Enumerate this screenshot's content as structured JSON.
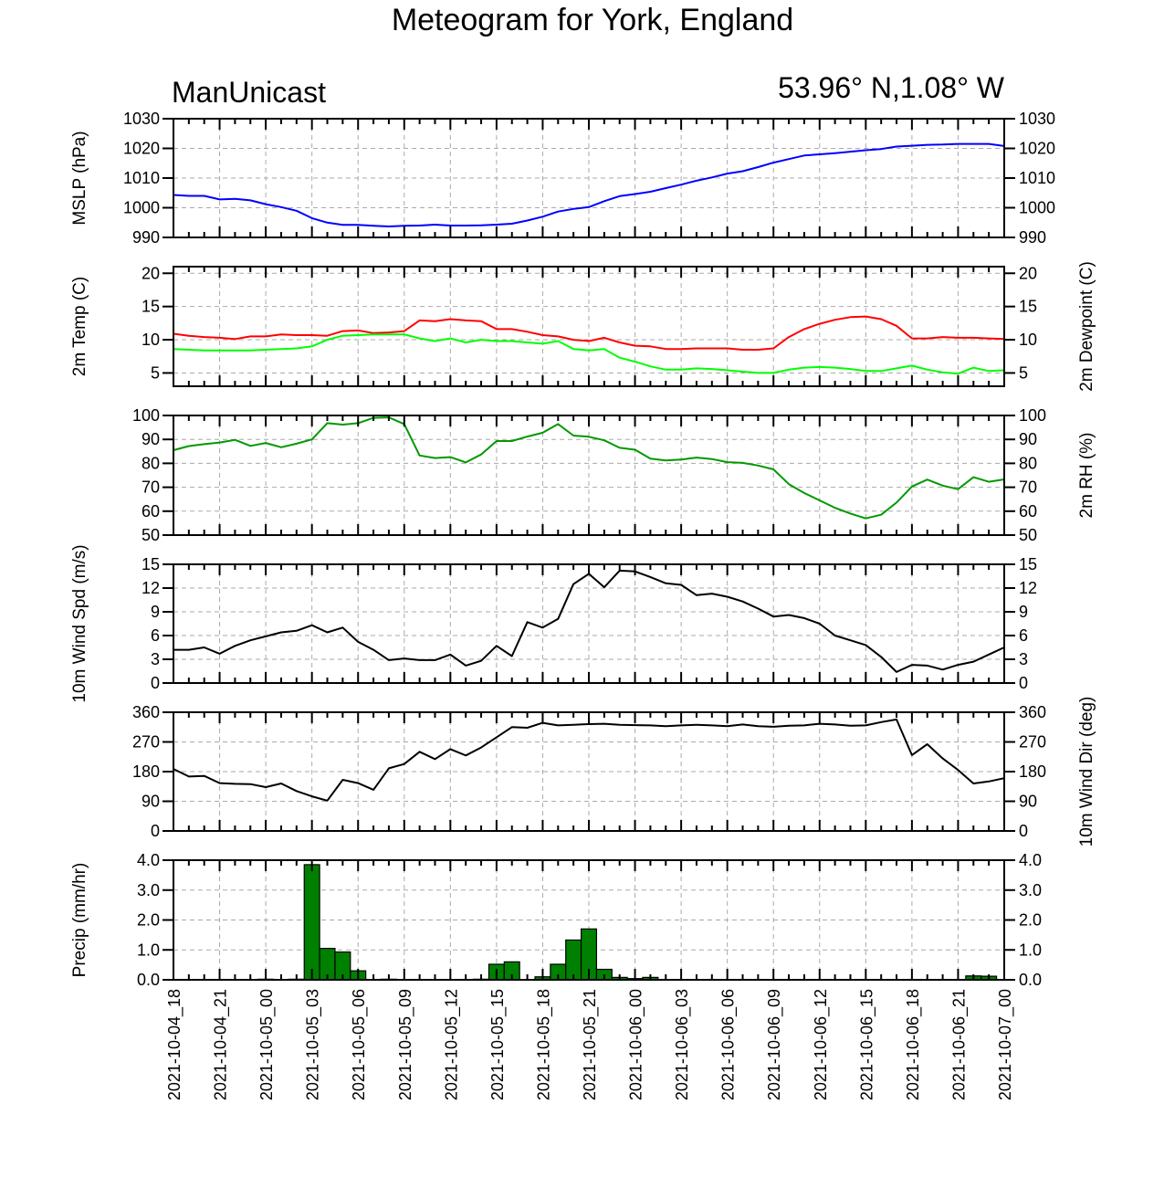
{
  "title": "Meteogram for York, England",
  "left_label": "ManUnicast",
  "right_label": "53.96° N,1.08° W",
  "colors": {
    "mslp": "#0000ff",
    "temp": "#ff0000",
    "dewpoint": "#00ff00",
    "rh": "#009900",
    "wind": "#000000",
    "precip_fill": "#008000",
    "grid": "#aaaaaa"
  },
  "chart_data": {
    "type": "meteogram",
    "x_count": 55,
    "x_tick_labels": [
      "2021-10-04_18",
      "2021-10-04_21",
      "2021-10-05_00",
      "2021-10-05_03",
      "2021-10-05_06",
      "2021-10-05_09",
      "2021-10-05_12",
      "2021-10-05_15",
      "2021-10-05_18",
      "2021-10-05_21",
      "2021-10-06_00",
      "2021-10-06_03",
      "2021-10-06_06",
      "2021-10-06_09",
      "2021-10-06_12",
      "2021-10-06_15",
      "2021-10-06_18",
      "2021-10-06_21",
      "2021-10-07_00"
    ],
    "panels": [
      {
        "id": "mslp",
        "type": "line",
        "ylabel_left": "MSLP (hPa)",
        "ylabel_right": "",
        "ylim": [
          990,
          1030
        ],
        "yticks": [
          990,
          1000,
          1010,
          1020,
          1030
        ],
        "yticklabels": [
          "990",
          "1000",
          "1010",
          "1020",
          "1030"
        ],
        "series": [
          {
            "color": "#0000ff",
            "values": [
              1004.3,
              1004.0,
              1004.0,
              1002.8,
              1003.0,
              1002.5,
              1001.2,
              1000.2,
              999.0,
              996.5,
              995.0,
              994.2,
              994.2,
              993.9,
              993.7,
              993.9,
              994.0,
              994.3,
              994.0,
              994.0,
              994.1,
              994.3,
              994.6,
              995.7,
              997.0,
              998.7,
              999.6,
              1000.2,
              1002.2,
              1003.9,
              1004.6,
              1005.4,
              1006.6,
              1007.8,
              1009.1,
              1010.2,
              1011.5,
              1012.3,
              1013.7,
              1015.2,
              1016.4,
              1017.6,
              1018.0,
              1018.4,
              1018.9,
              1019.4,
              1019.8,
              1020.6,
              1020.9,
              1021.2,
              1021.3,
              1021.5,
              1021.5,
              1021.5,
              1020.8
            ]
          }
        ]
      },
      {
        "id": "temp",
        "type": "line",
        "ylabel_left": "2m Temp (C)",
        "ylabel_right": "2m Dewpoint (C)",
        "ylim": [
          3,
          21
        ],
        "yticks": [
          5,
          10,
          15,
          20
        ],
        "yticklabels": [
          "5",
          "10",
          "15",
          "20"
        ],
        "series": [
          {
            "color": "#ff0000",
            "values": [
              10.9,
              10.6,
              10.4,
              10.3,
              10.1,
              10.5,
              10.5,
              10.8,
              10.7,
              10.7,
              10.6,
              11.3,
              11.4,
              11.0,
              11.1,
              11.3,
              12.9,
              12.8,
              13.1,
              12.9,
              12.8,
              11.6,
              11.6,
              11.2,
              10.7,
              10.5,
              10.0,
              9.8,
              10.3,
              9.6,
              9.1,
              9.0,
              8.6,
              8.6,
              8.7,
              8.7,
              8.7,
              8.5,
              8.5,
              8.7,
              10.4,
              11.6,
              12.4,
              13.0,
              13.4,
              13.5,
              13.1,
              12.1,
              10.2,
              10.2,
              10.4,
              10.3,
              10.3,
              10.2,
              10.1
            ]
          },
          {
            "color": "#00ff00",
            "values": [
              8.6,
              8.5,
              8.4,
              8.4,
              8.4,
              8.4,
              8.5,
              8.6,
              8.7,
              9.0,
              10.0,
              10.6,
              10.7,
              10.8,
              10.8,
              10.8,
              10.2,
              9.8,
              10.2,
              9.6,
              10.0,
              9.8,
              9.8,
              9.6,
              9.4,
              9.8,
              8.6,
              8.4,
              8.6,
              7.3,
              6.7,
              6.0,
              5.5,
              5.5,
              5.7,
              5.6,
              5.4,
              5.2,
              5.0,
              5.0,
              5.5,
              5.8,
              5.9,
              5.8,
              5.6,
              5.3,
              5.3,
              5.7,
              6.1,
              5.5,
              5.1,
              4.9,
              5.8,
              5.3,
              5.4
            ]
          }
        ]
      },
      {
        "id": "rh",
        "type": "line",
        "ylabel_left": "",
        "ylabel_right": "2m RH (%)",
        "ylim": [
          50,
          100
        ],
        "yticks": [
          50,
          60,
          70,
          80,
          90,
          100
        ],
        "yticklabels": [
          "50",
          "60",
          "70",
          "80",
          "90",
          "100"
        ],
        "series": [
          {
            "color": "#009900",
            "values": [
              85.5,
              87.2,
              88.0,
              88.7,
              89.8,
              87.3,
              88.5,
              86.7,
              88.2,
              90.0,
              96.8,
              96.2,
              96.8,
              99.0,
              99.2,
              96.4,
              83.3,
              82.2,
              82.6,
              80.4,
              83.7,
              89.3,
              89.3,
              91.2,
              92.8,
              96.4,
              91.6,
              91.1,
              89.6,
              86.5,
              85.7,
              82.0,
              81.2,
              81.6,
              82.4,
              81.8,
              80.5,
              80.2,
              79.1,
              77.5,
              71.3,
              67.6,
              64.5,
              61.4,
              59.0,
              57.0,
              58.5,
              63.6,
              70.3,
              73.2,
              70.7,
              69.2,
              74.2,
              72.3,
              73.3
            ]
          }
        ]
      },
      {
        "id": "wspd",
        "type": "line",
        "ylabel_left": "10m Wind Spd (m/s)",
        "ylabel_right": "",
        "ylim": [
          0,
          15
        ],
        "yticks": [
          0,
          3,
          6,
          9,
          12,
          15
        ],
        "yticklabels": [
          "0",
          "3",
          "6",
          "9",
          "12",
          "15"
        ],
        "series": [
          {
            "color": "#000000",
            "values": [
              4.2,
              4.2,
              4.5,
              3.7,
              4.7,
              5.4,
              5.9,
              6.4,
              6.6,
              7.3,
              6.4,
              7.0,
              5.2,
              4.2,
              2.9,
              3.1,
              2.9,
              2.9,
              3.6,
              2.2,
              2.8,
              4.7,
              3.4,
              7.7,
              7.0,
              8.1,
              12.5,
              13.8,
              12.1,
              14.2,
              14.1,
              13.4,
              12.6,
              12.4,
              11.1,
              11.3,
              10.9,
              10.3,
              9.4,
              8.4,
              8.6,
              8.2,
              7.5,
              6.0,
              5.4,
              4.8,
              3.3,
              1.4,
              2.3,
              2.2,
              1.7,
              2.3,
              2.7,
              3.6,
              4.5
            ]
          }
        ]
      },
      {
        "id": "wdir",
        "type": "line",
        "ylabel_left": "",
        "ylabel_right": "10m Wind Dir (deg)",
        "ylim": [
          0,
          360
        ],
        "yticks": [
          0,
          90,
          180,
          270,
          360
        ],
        "yticklabels": [
          "0",
          "90",
          "180",
          "270",
          "360"
        ],
        "series": [
          {
            "color": "#000000",
            "values": [
              188,
              165,
              167,
              145,
              143,
              142,
              133,
              144,
              121,
              105,
              92,
              155,
              145,
              125,
              190,
              203,
              240,
              218,
              248,
              229,
              253,
              284,
              315,
              313,
              328,
              320,
              322,
              324,
              325,
              322,
              321,
              320,
              318,
              320,
              322,
              320,
              318,
              323,
              318,
              316,
              319,
              320,
              325,
              323,
              319,
              320,
              330,
              338,
              230,
              263,
              220,
              185,
              144,
              150,
              160
            ]
          }
        ]
      },
      {
        "id": "precip",
        "type": "bar",
        "ylabel_left": "Precip (mm/hr)",
        "ylabel_right": "",
        "ylim": [
          0,
          4.0
        ],
        "yticks": [
          0,
          1,
          2,
          3,
          4
        ],
        "yticklabels": [
          "0.0",
          "1.0",
          "2.0",
          "3.0",
          "4.0"
        ],
        "series": [
          {
            "color": "#008000",
            "values": [
              0,
              0,
              0,
              0,
              0,
              0.01,
              0.02,
              0.01,
              0.02,
              3.85,
              1.05,
              0.93,
              0.3,
              0,
              0.02,
              0,
              0,
              0,
              0,
              0.01,
              0.02,
              0.52,
              0.6,
              0,
              0.1,
              0.52,
              1.33,
              1.7,
              0.35,
              0.08,
              0.04,
              0.08,
              0,
              0,
              0,
              0,
              0,
              0,
              0,
              0,
              0,
              0,
              0,
              0,
              0,
              0,
              0,
              0,
              0,
              0,
              0,
              0,
              0.13,
              0.12,
              0
            ]
          }
        ]
      }
    ]
  }
}
